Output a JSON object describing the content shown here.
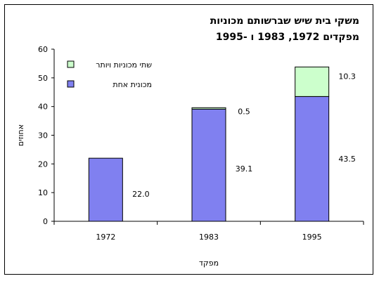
{
  "chart_data": {
    "type": "bar",
    "stacked": true,
    "title": "משקי בית שיש שברשותם מכוניות",
    "subtitle": "מפקדים  1972, 1983 ו -1995",
    "xlabel": "מפקד",
    "ylabel": "אחוזים",
    "ylim": [
      0,
      60
    ],
    "yticks": [
      0,
      10,
      20,
      30,
      40,
      50,
      60
    ],
    "categories": [
      "1972",
      "1983",
      "1995"
    ],
    "series": [
      {
        "name": "מכונית אחת",
        "values": [
          22.0,
          39.1,
          43.5
        ],
        "labels": [
          "22.0",
          "39.1",
          "43.5"
        ],
        "color": "#8080f0"
      },
      {
        "name": "שתי מכוניות ויותר",
        "values": [
          0,
          0.5,
          10.3
        ],
        "labels": [
          "",
          "0.5",
          "10.3"
        ],
        "color": "#ccffcc"
      }
    ],
    "legend_position": "top-left",
    "grid": false
  }
}
